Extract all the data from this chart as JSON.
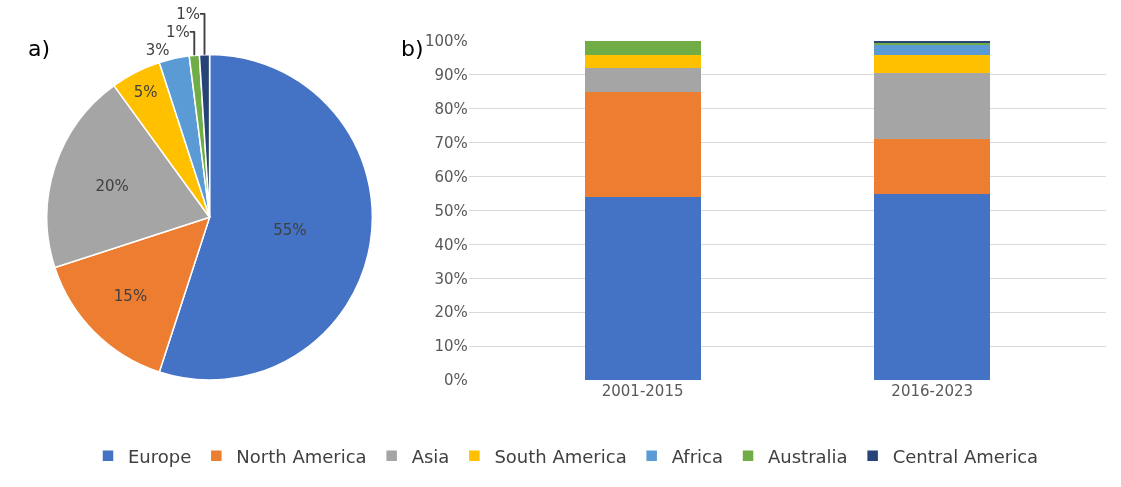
{
  "chart_data": [
    {
      "type": "pie",
      "title": "a)",
      "categories": [
        "Europe",
        "North America",
        "Asia",
        "South America",
        "Africa",
        "Australia",
        "Central America"
      ],
      "values": [
        55,
        15,
        20,
        5,
        3,
        1,
        1
      ],
      "colors": [
        "#4472c4",
        "#ed7d31",
        "#a5a5a5",
        "#ffc000",
        "#5b9bd5",
        "#70ad47",
        "#264478"
      ],
      "value_labels": [
        "55%",
        "15%",
        "20%",
        "5%",
        "3%",
        "1%",
        "1%"
      ],
      "legend": "bottom"
    },
    {
      "type": "bar",
      "title": "b)",
      "stacked": true,
      "categories": [
        "2001-2015",
        "2016-2023"
      ],
      "series": [
        {
          "color": "#4472c4",
          "values": [
            54,
            55
          ]
        },
        {
          "color": "#ed7d31",
          "values": [
            31,
            16
          ]
        },
        {
          "color": "#a5a5a5",
          "values": [
            7,
            19.5
          ]
        },
        {
          "color": "#ffc000",
          "values": [
            4,
            5.5
          ]
        },
        {
          "color": "#5b9bd5",
          "values": [
            0,
            3
          ]
        },
        {
          "color": "#70ad47",
          "values": [
            4,
            0.3
          ]
        },
        {
          "color": "#264478",
          "values": [
            0,
            0.7
          ]
        }
      ],
      "ylim": [
        0,
        100
      ],
      "yticks": [
        {
          "value": 0,
          "label": "0%"
        },
        {
          "value": 10,
          "label": "10%"
        },
        {
          "value": 20,
          "label": "20%"
        },
        {
          "value": 30,
          "label": "30%"
        },
        {
          "value": 40,
          "label": "40%"
        },
        {
          "value": 50,
          "label": "50%"
        },
        {
          "value": 60,
          "label": "60%"
        },
        {
          "value": 70,
          "label": "70%"
        },
        {
          "value": 80,
          "label": "80%"
        },
        {
          "value": 90,
          "label": "90%"
        },
        {
          "value": 100,
          "label": "100%"
        }
      ],
      "grid": "y"
    }
  ]
}
